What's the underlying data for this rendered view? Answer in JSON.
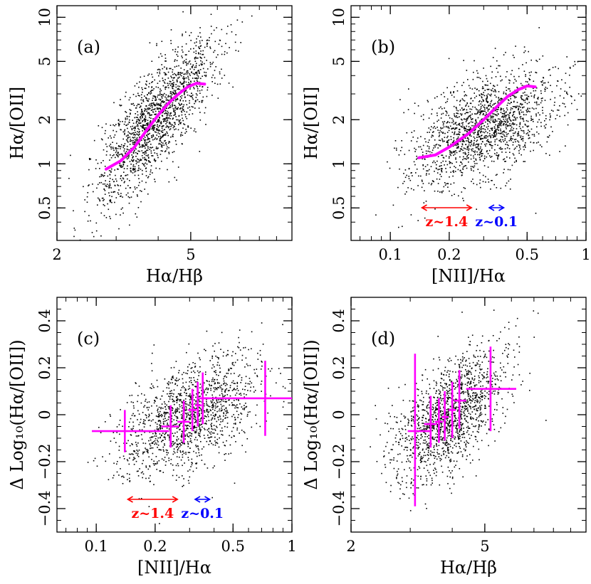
{
  "chart_data": [
    {
      "type": "scatter",
      "panel_label": "(a)",
      "xscale": "log",
      "yscale": "log",
      "xlim": [
        2,
        10
      ],
      "ylim": [
        0.3,
        12
      ],
      "xticks": [
        {
          "v": 2,
          "t": "2"
        },
        {
          "v": 5,
          "t": "5"
        }
      ],
      "yticks": [
        {
          "v": 0.5,
          "t": "0.5"
        },
        {
          "v": 1,
          "t": "1"
        },
        {
          "v": 2,
          "t": "2"
        },
        {
          "v": 5,
          "t": "5"
        },
        {
          "v": 10,
          "t": "10"
        }
      ],
      "xlabel": "Hα/Hβ",
      "ylabel": "Hα/[OII]",
      "scatter_cloud": {
        "x_center": 3.9,
        "x_spread": 0.09,
        "y_center": 2.0,
        "y_spread": 0.17,
        "slope": 2.5,
        "n": 1700
      },
      "curve": [
        [
          2.8,
          0.92
        ],
        [
          3.1,
          1.05
        ],
        [
          3.4,
          1.3
        ],
        [
          3.7,
          1.7
        ],
        [
          4.0,
          2.15
        ],
        [
          4.3,
          2.6
        ],
        [
          4.6,
          3.0
        ],
        [
          4.9,
          3.35
        ],
        [
          5.2,
          3.55
        ],
        [
          5.5,
          3.5
        ]
      ],
      "curve_color": "#ff00ff"
    },
    {
      "type": "scatter",
      "panel_label": "(b)",
      "xscale": "log",
      "yscale": "log",
      "xlim": [
        0.063,
        1
      ],
      "ylim": [
        0.3,
        12
      ],
      "xticks": [
        {
          "v": 0.1,
          "t": "0.1"
        },
        {
          "v": 0.2,
          "t": "0.2"
        },
        {
          "v": 0.5,
          "t": "0.5"
        },
        {
          "v": 1,
          "t": "1"
        }
      ],
      "yticks": [
        {
          "v": 0.5,
          "t": "0.5"
        },
        {
          "v": 1,
          "t": "1"
        },
        {
          "v": 2,
          "t": "2"
        },
        {
          "v": 5,
          "t": "5"
        },
        {
          "v": 10,
          "t": "10"
        }
      ],
      "xlabel": "[NII]/Hα",
      "ylabel": "Hα/[OII]",
      "scatter_cloud": {
        "x_center": 0.3,
        "x_spread": 0.18,
        "y_center": 1.8,
        "y_spread": 0.17,
        "slope": 0.55,
        "n": 1700
      },
      "curve": [
        [
          0.14,
          1.1
        ],
        [
          0.17,
          1.15
        ],
        [
          0.2,
          1.3
        ],
        [
          0.25,
          1.6
        ],
        [
          0.3,
          2.0
        ],
        [
          0.35,
          2.45
        ],
        [
          0.4,
          2.9
        ],
        [
          0.45,
          3.2
        ],
        [
          0.5,
          3.4
        ],
        [
          0.55,
          3.35
        ]
      ],
      "curve_color": "#ff00ff",
      "ranges": [
        {
          "label": "z~1.4",
          "x0": 0.145,
          "x1": 0.26,
          "color": "#ff0000"
        },
        {
          "label": "z~0.1",
          "x0": 0.32,
          "x1": 0.38,
          "color": "#0000ff"
        }
      ]
    },
    {
      "type": "scatter",
      "panel_label": "(c)",
      "xscale": "log",
      "yscale": "linear",
      "xlim": [
        0.063,
        1
      ],
      "ylim": [
        -0.5,
        0.5
      ],
      "xticks": [
        {
          "v": 0.1,
          "t": "0.1"
        },
        {
          "v": 0.2,
          "t": "0.2"
        },
        {
          "v": 0.5,
          "t": "0.5"
        },
        {
          "v": 1,
          "t": "1"
        }
      ],
      "yticks": [
        {
          "v": -0.4,
          "t": "−0.4"
        },
        {
          "v": -0.2,
          "t": "−0.2"
        },
        {
          "v": 0,
          "t": "0"
        },
        {
          "v": 0.2,
          "t": "0.2"
        },
        {
          "v": 0.4,
          "t": "0.4"
        }
      ],
      "xlabel": "[NII]/Hα",
      "ylabel": "Δ Log₁₀(Hα/[OII])",
      "scatter_cloud": {
        "x_center": 0.3,
        "x_spread": 0.18,
        "y_center": 0.0,
        "y_spread": 0.11,
        "slope": 0.35,
        "n": 1500
      },
      "errorbars": [
        {
          "x": 0.14,
          "y": -0.07,
          "xlo": 0.095,
          "xhi": 0.235,
          "ylo": -0.16,
          "yhi": 0.02
        },
        {
          "x": 0.24,
          "y": -0.05,
          "xlo": 0.215,
          "xhi": 0.265,
          "ylo": -0.14,
          "yhi": 0.04
        },
        {
          "x": 0.28,
          "y": -0.03,
          "xlo": 0.26,
          "xhi": 0.3,
          "ylo": -0.12,
          "yhi": 0.06
        },
        {
          "x": 0.31,
          "y": 0.02,
          "xlo": 0.295,
          "xhi": 0.325,
          "ylo": -0.07,
          "yhi": 0.11
        },
        {
          "x": 0.33,
          "y": 0.04,
          "xlo": 0.32,
          "xhi": 0.345,
          "ylo": -0.05,
          "yhi": 0.14
        },
        {
          "x": 0.35,
          "y": 0.07,
          "xlo": 0.335,
          "xhi": 0.375,
          "ylo": -0.04,
          "yhi": 0.18
        },
        {
          "x": 0.73,
          "y": 0.07,
          "xlo": 0.35,
          "xhi": 1.0,
          "ylo": -0.09,
          "yhi": 0.23
        }
      ],
      "errorbar_color": "#ff00ff",
      "ranges": [
        {
          "label": "z~1.4",
          "x0": 0.145,
          "x1": 0.26,
          "color": "#ff0000"
        },
        {
          "label": "z~0.1",
          "x0": 0.32,
          "x1": 0.38,
          "color": "#0000ff"
        }
      ]
    },
    {
      "type": "scatter",
      "panel_label": "(d)",
      "xscale": "log",
      "yscale": "linear",
      "xlim": [
        2,
        10
      ],
      "ylim": [
        -0.5,
        0.5
      ],
      "xticks": [
        {
          "v": 2,
          "t": "2"
        },
        {
          "v": 5,
          "t": "5"
        }
      ],
      "yticks": [
        {
          "v": -0.4,
          "t": "−0.4"
        },
        {
          "v": -0.2,
          "t": "−0.2"
        },
        {
          "v": 0,
          "t": "0"
        },
        {
          "v": 0.2,
          "t": "0.2"
        },
        {
          "v": 0.4,
          "t": "0.4"
        }
      ],
      "xlabel": "Hα/Hβ",
      "ylabel": "Δ Log₁₀(Hα/[OII])",
      "scatter_cloud": {
        "x_center": 3.9,
        "x_spread": 0.08,
        "y_center": 0.0,
        "y_spread": 0.11,
        "slope": 1.0,
        "n": 1500
      },
      "errorbars": [
        {
          "x": 3.1,
          "y": -0.07,
          "xlo": 2.95,
          "xhi": 3.45,
          "ylo": -0.39,
          "yhi": 0.26
        },
        {
          "x": 3.45,
          "y": -0.04,
          "xlo": 3.3,
          "xhi": 3.6,
          "ylo": -0.14,
          "yhi": 0.08
        },
        {
          "x": 3.65,
          "y": -0.03,
          "xlo": 3.55,
          "xhi": 3.75,
          "ylo": -0.12,
          "yhi": 0.07
        },
        {
          "x": 3.8,
          "y": -0.01,
          "xlo": 3.72,
          "xhi": 3.9,
          "ylo": -0.11,
          "yhi": 0.1
        },
        {
          "x": 4.0,
          "y": 0.02,
          "xlo": 3.9,
          "xhi": 4.1,
          "ylo": -0.1,
          "yhi": 0.14
        },
        {
          "x": 4.2,
          "y": 0.06,
          "xlo": 4.05,
          "xhi": 4.4,
          "ylo": -0.06,
          "yhi": 0.19
        },
        {
          "x": 5.2,
          "y": 0.11,
          "xlo": 4.4,
          "xhi": 6.2,
          "ylo": -0.07,
          "yhi": 0.29
        }
      ],
      "errorbar_color": "#ff00ff"
    }
  ]
}
